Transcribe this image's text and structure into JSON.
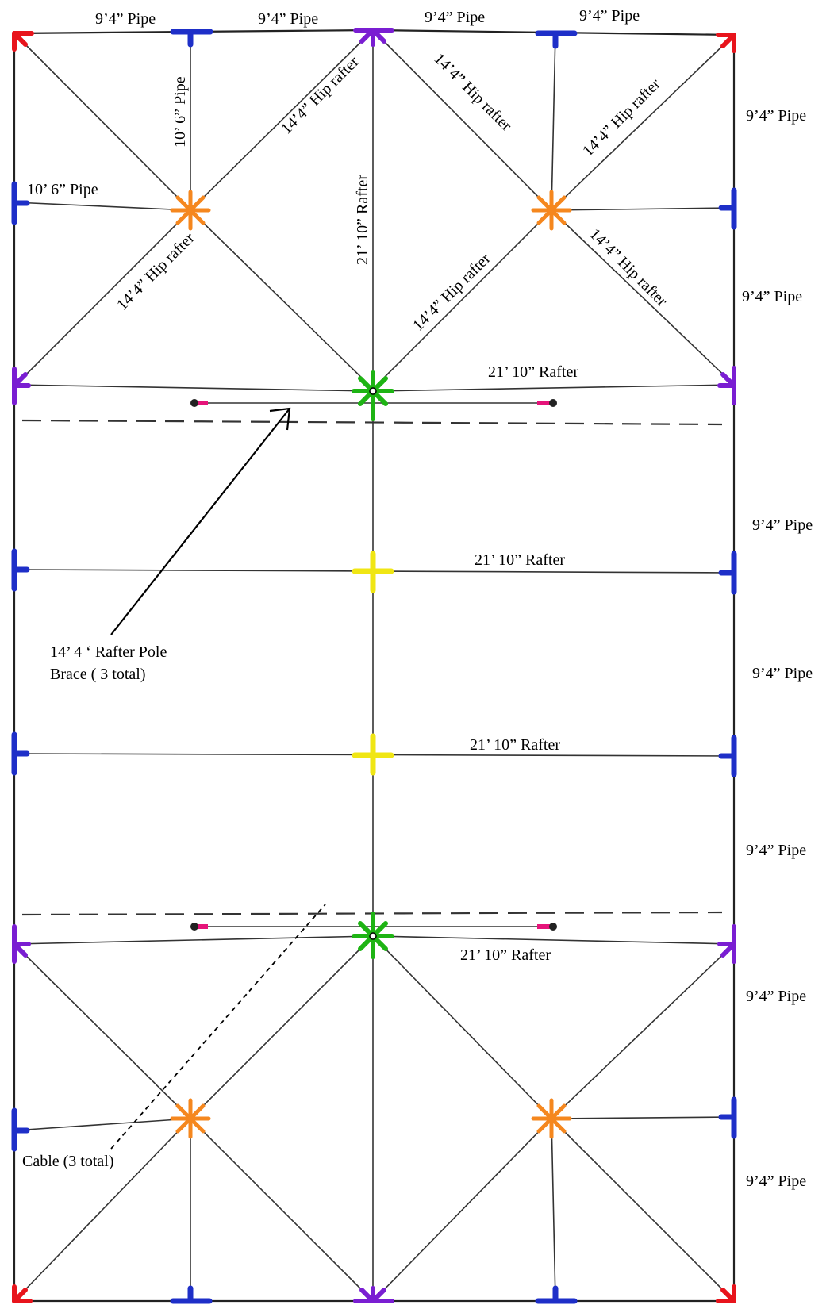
{
  "labels": {
    "top_pipe_1": "9’4” Pipe",
    "top_pipe_2": "9’4” Pipe",
    "top_pipe_3": "9’4” Pipe",
    "top_pipe_4": "9’4” Pipe",
    "vertical_pipe": "10’ 6” Pipe",
    "left_pipe": "10’ 6” Pipe",
    "center_rafter": "21’ 10” Rafter",
    "hip_rafter_1": "14’4” Hip rafter",
    "hip_rafter_2": "14’4” Hip rafter",
    "hip_rafter_3": "14’4” Hip rafter",
    "hip_rafter_4": "14’4” Hip rafter",
    "hip_rafter_5": "14’4” Hip rafter",
    "hip_rafter_6": "14’4” Hip rafter",
    "rafter_1": "21’ 10” Rafter",
    "rafter_2": "21’ 10” Rafter",
    "rafter_3": "21’ 10” Rafter",
    "rafter_4": "21’ 10” Rafter",
    "right_pipe_1": "9’4” Pipe",
    "right_pipe_2": "9’4” Pipe",
    "right_pipe_3": "9’4” Pipe",
    "right_pipe_4": "9’4” Pipe",
    "right_pipe_5": "9’4” Pipe",
    "right_pipe_6": "9’4” Pipe",
    "right_pipe_7": "9’4” Pipe",
    "brace_line_1": "14’ 4 ‘ Rafter Pole",
    "brace_line_2": "Brace ( 3 total)",
    "cable": "Cable (3 total)"
  },
  "colors": {
    "corner": "#e8141c",
    "tee": "#1e2fc8",
    "hip_peak": "#7a1ed2",
    "hip_junction": "#f5871e",
    "ridge_hub": "#1eb414",
    "ridge_cross": "#f0e614",
    "brace_end": "#e6147a",
    "line": "#222222"
  }
}
